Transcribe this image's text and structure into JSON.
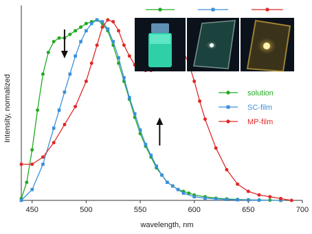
{
  "chart_data": {
    "type": "line",
    "title": "",
    "xlabel": "wavelength, nm",
    "ylabel": "Intensity, normalized",
    "xlim": [
      440,
      700
    ],
    "ylim": [
      0,
      1.08
    ],
    "xticks": [
      450,
      500,
      550,
      600,
      650,
      700
    ],
    "grid": false,
    "legend_position": "right",
    "series": [
      {
        "name": "solution",
        "color": "#22aa22",
        "marker": "circle",
        "x": [
          440,
          445,
          450,
          455,
          460,
          465,
          470,
          475,
          480,
          485,
          490,
          495,
          500,
          505,
          510,
          515,
          520,
          525,
          530,
          535,
          540,
          545,
          550,
          555,
          560,
          565,
          570,
          575,
          580,
          585,
          590,
          595,
          600,
          610,
          620,
          630,
          640,
          650,
          660,
          670,
          680
        ],
        "y": [
          0.01,
          0.1,
          0.28,
          0.5,
          0.7,
          0.82,
          0.88,
          0.9,
          0.9,
          0.92,
          0.94,
          0.96,
          0.98,
          0.99,
          1.0,
          0.98,
          0.94,
          0.86,
          0.76,
          0.66,
          0.56,
          0.46,
          0.37,
          0.3,
          0.24,
          0.18,
          0.14,
          0.1,
          0.08,
          0.06,
          0.05,
          0.04,
          0.03,
          0.02,
          0.012,
          0.008,
          0.005,
          0.003,
          0.002,
          0.001,
          0.0
        ]
      },
      {
        "name": "SC-film",
        "color": "#3a8fdc",
        "marker": "square",
        "x": [
          440,
          450,
          460,
          470,
          475,
          480,
          485,
          490,
          495,
          500,
          505,
          510,
          515,
          520,
          525,
          530,
          535,
          540,
          545,
          550,
          555,
          560,
          565,
          570,
          575,
          580,
          585,
          590,
          600,
          610,
          620,
          630,
          640,
          650,
          660,
          680
        ],
        "y": [
          0.0,
          0.06,
          0.2,
          0.4,
          0.5,
          0.6,
          0.7,
          0.8,
          0.88,
          0.94,
          0.98,
          1.0,
          0.99,
          0.95,
          0.88,
          0.79,
          0.68,
          0.57,
          0.48,
          0.39,
          0.31,
          0.25,
          0.19,
          0.14,
          0.1,
          0.08,
          0.06,
          0.04,
          0.02,
          0.012,
          0.008,
          0.005,
          0.003,
          0.002,
          0.001,
          0.0
        ]
      },
      {
        "name": "MP-film",
        "color": "#e02828",
        "marker": "circle",
        "x": [
          440,
          450,
          460,
          470,
          480,
          490,
          500,
          505,
          510,
          515,
          520,
          525,
          530,
          535,
          540,
          545,
          550,
          555,
          560,
          565,
          570,
          575,
          580,
          585,
          590,
          595,
          600,
          605,
          610,
          620,
          630,
          640,
          650,
          660,
          670,
          680,
          690
        ],
        "y": [
          0.2,
          0.2,
          0.24,
          0.32,
          0.42,
          0.52,
          0.66,
          0.76,
          0.86,
          0.96,
          1.0,
          0.99,
          0.94,
          0.86,
          0.8,
          0.75,
          0.73,
          0.72,
          0.72,
          0.74,
          0.78,
          0.82,
          0.84,
          0.84,
          0.82,
          0.76,
          0.66,
          0.55,
          0.45,
          0.29,
          0.17,
          0.09,
          0.05,
          0.03,
          0.02,
          0.01,
          0.0
        ]
      }
    ],
    "annotations": [
      {
        "type": "arrow",
        "direction": "down",
        "x": 480,
        "y": 1.08
      },
      {
        "type": "arrow",
        "direction": "up",
        "x": 568,
        "y": 0.38
      }
    ],
    "inset_photos": [
      {
        "series": "solution",
        "glow_color": "#3ef0c0"
      },
      {
        "series": "SC-film",
        "glow_color": "#bff5d8"
      },
      {
        "series": "MP-film",
        "glow_color": "#ffc640"
      }
    ]
  }
}
